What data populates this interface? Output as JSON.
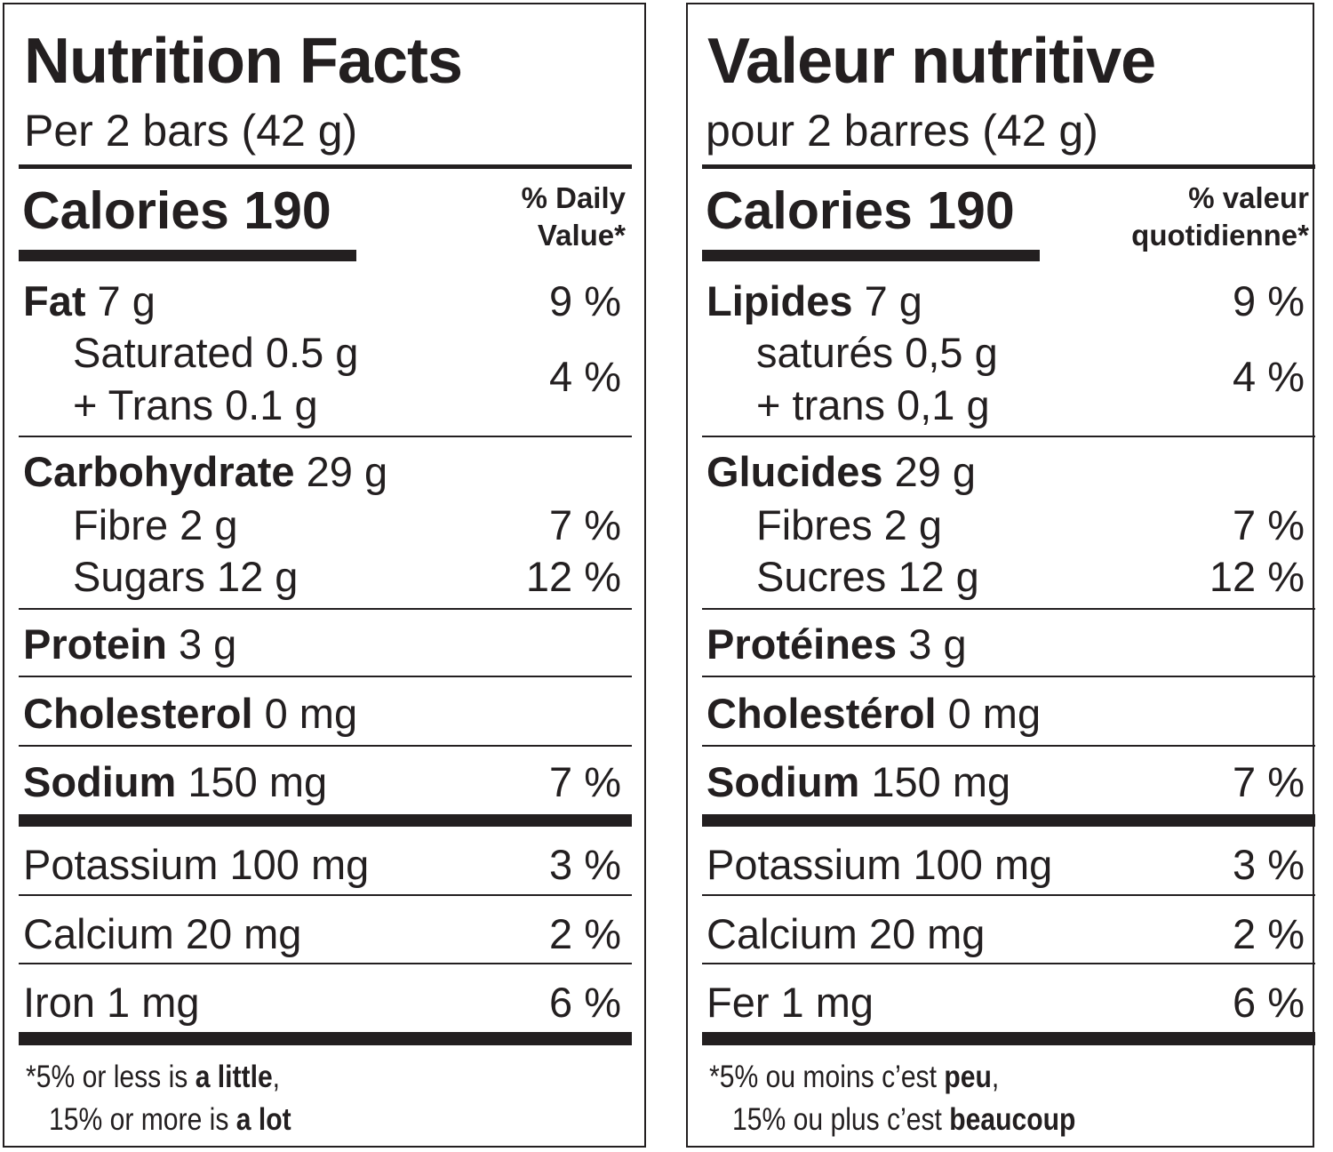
{
  "english": {
    "title": "Nutrition Facts",
    "serving": "Per 2 bars (42 g)",
    "calories": "Calories 190",
    "dv_header_line1": "% Daily",
    "dv_header_line2": "Value*",
    "fat_label": "Fat",
    "fat_amount": " 7 g",
    "fat_dv": "9 %",
    "saturated": "Saturated 0.5 g",
    "trans": "+ Trans 0.1 g",
    "sat_trans_dv": "4 %",
    "carb_label": "Carbohydrate",
    "carb_amount": " 29 g",
    "fibre": "Fibre 2 g",
    "fibre_dv": "7 %",
    "sugars": "Sugars 12 g",
    "sugars_dv": "12 %",
    "protein_label": "Protein",
    "protein_amount": " 3 g",
    "chol_label": "Cholesterol",
    "chol_amount": " 0 mg",
    "sodium_label": "Sodium",
    "sodium_amount": " 150 mg",
    "sodium_dv": "7 %",
    "potassium": "Potassium 100 mg",
    "potassium_dv": "3 %",
    "calcium": "Calcium 20 mg",
    "calcium_dv": "2 %",
    "iron": "Iron 1 mg",
    "iron_dv": "6 %",
    "foot1_pre": "*5% or less is ",
    "foot1_bold": "a little",
    "foot1_post": ",",
    "foot2_pre": "15% or more is ",
    "foot2_bold": "a lot"
  },
  "french": {
    "title": "Valeur nutritive",
    "serving": "pour 2 barres (42 g)",
    "calories": "Calories 190",
    "dv_header_line1": "% valeur",
    "dv_header_line2": "quotidienne*",
    "fat_label": "Lipides",
    "fat_amount": " 7 g",
    "fat_dv": "9 %",
    "saturated": "saturés 0,5 g",
    "trans": "+ trans 0,1 g",
    "sat_trans_dv": "4 %",
    "carb_label": "Glucides",
    "carb_amount": " 29 g",
    "fibre": "Fibres 2 g",
    "fibre_dv": "7 %",
    "sugars": "Sucres 12 g",
    "sugars_dv": "12 %",
    "protein_label": "Protéines",
    "protein_amount": " 3 g",
    "chol_label": "Cholestérol",
    "chol_amount": " 0 mg",
    "sodium_label": "Sodium",
    "sodium_amount": " 150 mg",
    "sodium_dv": "7 %",
    "potassium": "Potassium 100 mg",
    "potassium_dv": "3 %",
    "calcium": "Calcium 20 mg",
    "calcium_dv": "2 %",
    "iron": "Fer 1 mg",
    "iron_dv": "6 %",
    "foot1_pre": "*5% ou moins c’est ",
    "foot1_bold": "peu",
    "foot1_post": ",",
    "foot2_pre": "15% ou plus c’est ",
    "foot2_bold": "beaucoup"
  }
}
